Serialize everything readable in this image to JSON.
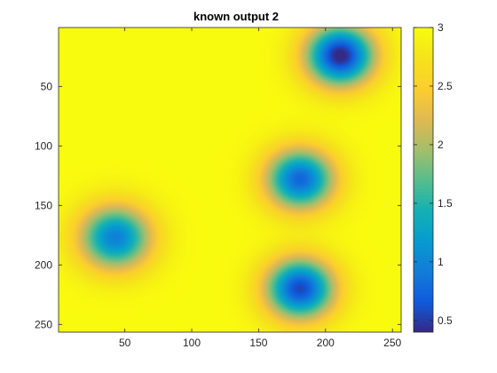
{
  "chart_data": {
    "type": "heatmap",
    "title": "known output 2",
    "xlabel": "",
    "ylabel": "",
    "xlim": [
      0.5,
      256.5
    ],
    "ylim": [
      0.5,
      256.5
    ],
    "y_reversed": true,
    "x_ticks": [
      50,
      100,
      150,
      200,
      250
    ],
    "y_ticks": [
      50,
      100,
      150,
      200,
      250
    ],
    "colorbar": {
      "range": [
        0.4,
        3.0
      ],
      "ticks": [
        "0.5",
        "1",
        "1.5",
        "2",
        "2.5",
        "3"
      ],
      "tick_values": [
        0.5,
        1,
        1.5,
        2,
        2.5,
        3
      ],
      "colormap": "parula"
    },
    "background_value": 3.0,
    "wells": [
      {
        "x": 211,
        "y": 24,
        "min_value": 0.35,
        "radius": 40
      },
      {
        "x": 181,
        "y": 128,
        "min_value": 0.75,
        "radius": 40
      },
      {
        "x": 43,
        "y": 177,
        "min_value": 0.95,
        "radius": 42
      },
      {
        "x": 181,
        "y": 220,
        "min_value": 0.55,
        "radius": 40
      }
    ]
  }
}
